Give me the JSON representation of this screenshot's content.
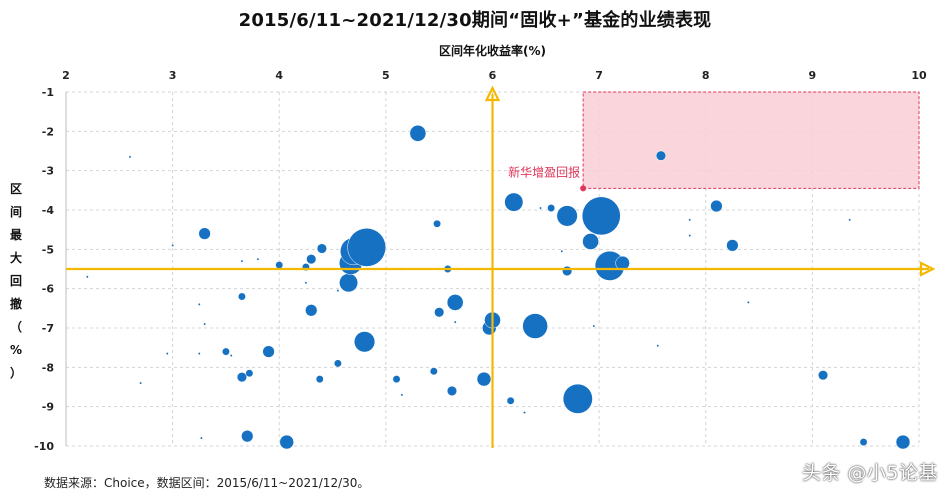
{
  "chart_data": {
    "type": "scatter",
    "title": "2015/6/11~2021/12/30期间“固收+”基金的业绩表现",
    "xlabel": "区间年化收益率(%)",
    "ylabel": "区间最大回撤（%）",
    "xlim": [
      2,
      10
    ],
    "ylim": [
      -10,
      -1
    ],
    "x_ticks": [
      "2",
      "3",
      "4",
      "5",
      "6",
      "7",
      "8",
      "9",
      "10"
    ],
    "y_ticks": [
      "-1",
      "-2",
      "-3",
      "-4",
      "-5",
      "-6",
      "-7",
      "-8",
      "-9",
      "-10"
    ],
    "grid": true,
    "axis_cross": {
      "x": 6,
      "y": -5.5
    },
    "highlight_region": {
      "x": [
        6.85,
        10
      ],
      "y": [
        -3.45,
        -1
      ]
    },
    "annotation": {
      "label": "新华增盈回报",
      "x": 6.85,
      "y": -3.45,
      "color": "#e0365a"
    },
    "series": [
      {
        "name": "固收+基金",
        "color": "#1671c3",
        "points": [
          {
            "x": 2.6,
            "y": -2.65,
            "size": 1
          },
          {
            "x": 2.2,
            "y": -5.7,
            "size": 1
          },
          {
            "x": 2.7,
            "y": -8.4,
            "size": 1
          },
          {
            "x": 2.95,
            "y": -7.65,
            "size": 1
          },
          {
            "x": 3.0,
            "y": -4.9,
            "size": 1
          },
          {
            "x": 3.3,
            "y": -4.6,
            "size": 4
          },
          {
            "x": 3.25,
            "y": -6.4,
            "size": 1
          },
          {
            "x": 3.3,
            "y": -6.9,
            "size": 1
          },
          {
            "x": 3.25,
            "y": -7.65,
            "size": 1
          },
          {
            "x": 3.27,
            "y": -9.8,
            "size": 1
          },
          {
            "x": 3.5,
            "y": -7.6,
            "size": 2
          },
          {
            "x": 3.55,
            "y": -7.7,
            "size": 1
          },
          {
            "x": 3.65,
            "y": -6.2,
            "size": 2
          },
          {
            "x": 3.65,
            "y": -8.25,
            "size": 3
          },
          {
            "x": 3.7,
            "y": -9.75,
            "size": 4
          },
          {
            "x": 3.72,
            "y": -8.15,
            "size": 2
          },
          {
            "x": 3.8,
            "y": -5.25,
            "size": 1
          },
          {
            "x": 3.9,
            "y": -7.6,
            "size": 4
          },
          {
            "x": 3.65,
            "y": -5.3,
            "size": 1
          },
          {
            "x": 4.0,
            "y": -5.4,
            "size": 2
          },
          {
            "x": 4.07,
            "y": -9.9,
            "size": 5
          },
          {
            "x": 4.25,
            "y": -5.45,
            "size": 2
          },
          {
            "x": 4.25,
            "y": -5.85,
            "size": 1
          },
          {
            "x": 4.3,
            "y": -5.25,
            "size": 3
          },
          {
            "x": 4.3,
            "y": -6.55,
            "size": 4
          },
          {
            "x": 4.38,
            "y": -8.3,
            "size": 2
          },
          {
            "x": 4.4,
            "y": -4.98,
            "size": 3
          },
          {
            "x": 4.55,
            "y": -7.9,
            "size": 2
          },
          {
            "x": 4.55,
            "y": -6.05,
            "size": 1
          },
          {
            "x": 4.65,
            "y": -5.85,
            "size": 7
          },
          {
            "x": 4.67,
            "y": -5.35,
            "size": 9
          },
          {
            "x": 4.7,
            "y": -5.05,
            "size": 11
          },
          {
            "x": 4.8,
            "y": -7.35,
            "size": 8
          },
          {
            "x": 4.82,
            "y": -4.95,
            "size": 16
          },
          {
            "x": 5.3,
            "y": -2.05,
            "size": 6
          },
          {
            "x": 5.1,
            "y": -8.3,
            "size": 2
          },
          {
            "x": 5.15,
            "y": -5.5,
            "size": 1
          },
          {
            "x": 5.15,
            "y": -8.7,
            "size": 1
          },
          {
            "x": 5.45,
            "y": -8.1,
            "size": 2
          },
          {
            "x": 5.48,
            "y": -4.35,
            "size": 2
          },
          {
            "x": 5.5,
            "y": -6.6,
            "size": 3
          },
          {
            "x": 5.58,
            "y": -5.5,
            "size": 2
          },
          {
            "x": 5.62,
            "y": -8.6,
            "size": 3
          },
          {
            "x": 5.65,
            "y": -6.35,
            "size": 6
          },
          {
            "x": 5.65,
            "y": -6.85,
            "size": 1
          },
          {
            "x": 5.92,
            "y": -8.3,
            "size": 5
          },
          {
            "x": 5.97,
            "y": -7.0,
            "size": 5
          },
          {
            "x": 6.0,
            "y": -6.8,
            "size": 6
          },
          {
            "x": 6.17,
            "y": -8.85,
            "size": 2
          },
          {
            "x": 6.2,
            "y": -3.8,
            "size": 7
          },
          {
            "x": 6.3,
            "y": -9.15,
            "size": 1
          },
          {
            "x": 6.4,
            "y": -6.95,
            "size": 10
          },
          {
            "x": 6.45,
            "y": -3.95,
            "size": 1
          },
          {
            "x": 6.55,
            "y": -3.95,
            "size": 2
          },
          {
            "x": 6.65,
            "y": -5.05,
            "size": 1
          },
          {
            "x": 6.7,
            "y": -4.15,
            "size": 8
          },
          {
            "x": 6.7,
            "y": -5.55,
            "size": 3
          },
          {
            "x": 6.8,
            "y": -8.8,
            "size": 12
          },
          {
            "x": 6.92,
            "y": -4.8,
            "size": 6
          },
          {
            "x": 6.95,
            "y": -6.95,
            "size": 1
          },
          {
            "x": 7.02,
            "y": -4.15,
            "size": 16
          },
          {
            "x": 7.1,
            "y": -5.42,
            "size": 12
          },
          {
            "x": 7.22,
            "y": -5.35,
            "size": 5
          },
          {
            "x": 7.55,
            "y": -7.45,
            "size": 1
          },
          {
            "x": 7.58,
            "y": -2.62,
            "size": 3
          },
          {
            "x": 7.85,
            "y": -4.65,
            "size": 1
          },
          {
            "x": 7.85,
            "y": -4.25,
            "size": 1
          },
          {
            "x": 8.1,
            "y": -3.9,
            "size": 4
          },
          {
            "x": 8.25,
            "y": -4.9,
            "size": 4
          },
          {
            "x": 8.4,
            "y": -6.35,
            "size": 1
          },
          {
            "x": 9.1,
            "y": -8.2,
            "size": 3
          },
          {
            "x": 9.35,
            "y": -4.25,
            "size": 1
          },
          {
            "x": 9.48,
            "y": -9.9,
            "size": 2
          },
          {
            "x": 9.85,
            "y": -9.9,
            "size": 5
          }
        ]
      }
    ]
  },
  "footer": {
    "source": "数据来源：Choice，数据区间：2015/6/11~2021/12/30。",
    "watermark": "头条 @小5论基"
  }
}
